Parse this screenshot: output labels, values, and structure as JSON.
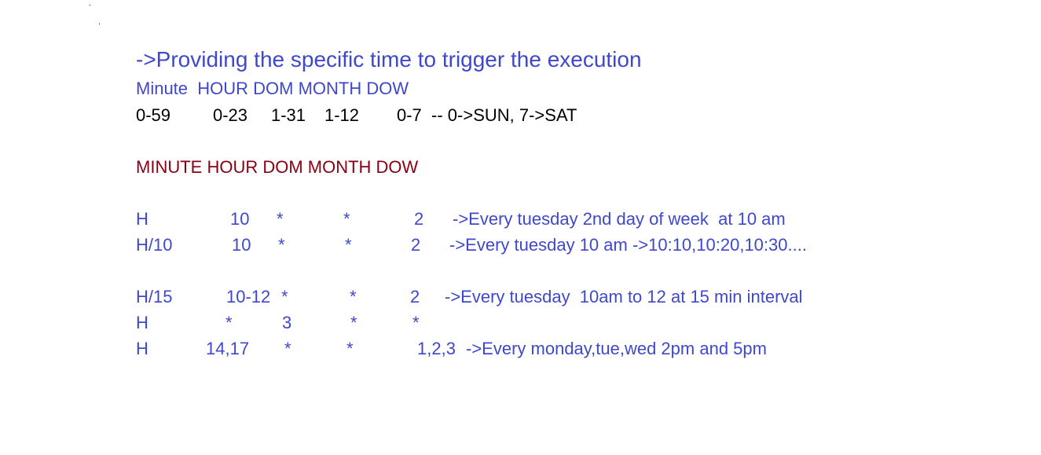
{
  "heading": "->Providing the specific time to trigger the execution",
  "field_header": "Minute  HOUR DOM MONTH DOW",
  "range_row": {
    "minute": "0-59",
    "hour": "0-23",
    "dom": "1-31",
    "month": "1-12",
    "dow": "0-7  -- 0->SUN, 7->SAT"
  },
  "examples_header": "MINUTE HOUR DOM MONTH DOW",
  "examples": [
    {
      "minute": "H",
      "hour": "10",
      "dom": "*",
      "month": "*",
      "dow": "2",
      "note": "->Every tuesday 2nd day of week  at 10 am"
    },
    {
      "minute": "H/10",
      "hour": "10",
      "dom": "*",
      "month": "*",
      "dow": "2",
      "note": "->Every tuesday 10 am ->10:10,10:20,10:30...."
    },
    {
      "minute": "H/15",
      "hour": "10-12",
      "dom": "*",
      "month": "*",
      "dow": "2",
      "note": "->Every tuesday  10am to 12 at 15 min interval"
    },
    {
      "minute": "H",
      "hour": "*",
      "dom": "3",
      "month": "*",
      "dow": "*",
      "note": ""
    },
    {
      "minute": "H",
      "hour": "14,17",
      "dom": "*",
      "month": "*",
      "dow": "1,2,3",
      "note": "->Every monday,tue,wed 2pm and 5pm"
    }
  ],
  "colors": {
    "blue": "#3f48cc",
    "dark_red": "#880015",
    "black": "#000000"
  }
}
